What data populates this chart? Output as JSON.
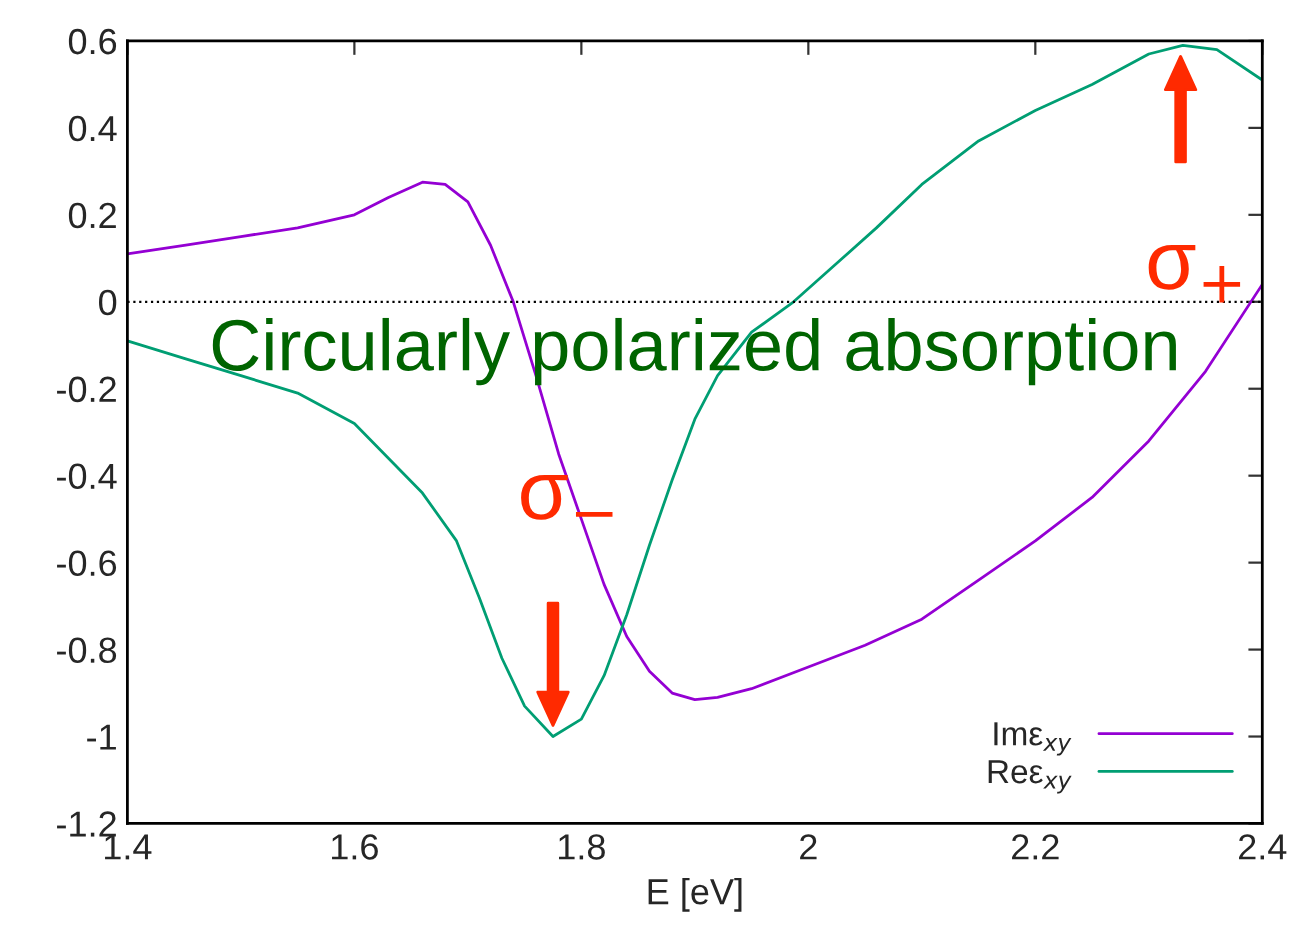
{
  "chart_data": {
    "type": "line",
    "xlabel": "E [eV]",
    "x": [
      1.4,
      1.45,
      1.5,
      1.55,
      1.6,
      1.63,
      1.66,
      1.68,
      1.7,
      1.72,
      1.74,
      1.76,
      1.78,
      1.8,
      1.82,
      1.84,
      1.86,
      1.88,
      1.9,
      1.92,
      1.95,
      2.0,
      2.05,
      2.1,
      2.15,
      2.2,
      2.25,
      2.3,
      2.35,
      2.4
    ],
    "series": [
      {
        "name": "Imε$_{xy}$",
        "color": "#9400d3",
        "values": [
          0.11,
          0.13,
          0.15,
          0.17,
          0.2,
          0.24,
          0.275,
          0.27,
          0.23,
          0.13,
          0.0,
          -0.17,
          -0.35,
          -0.5,
          -0.65,
          -0.77,
          -0.85,
          -0.9,
          -0.915,
          -0.91,
          -0.89,
          -0.84,
          -0.79,
          -0.73,
          -0.64,
          -0.55,
          -0.45,
          -0.32,
          -0.16,
          0.04
        ]
      },
      {
        "name": "Reε$_{xy}$",
        "color": "#009e73",
        "x": [
          1.4,
          1.45,
          1.5,
          1.55,
          1.6,
          1.63,
          1.66,
          1.69,
          1.71,
          1.73,
          1.75,
          1.775,
          1.8,
          1.82,
          1.84,
          1.86,
          1.88,
          1.9,
          1.92,
          1.95,
          1.987,
          2.03,
          2.06,
          2.1,
          2.15,
          2.2,
          2.25,
          2.3,
          2.33,
          2.36,
          2.4
        ],
        "values": [
          -0.09,
          -0.13,
          -0.17,
          -0.21,
          -0.28,
          -0.36,
          -0.44,
          -0.55,
          -0.68,
          -0.82,
          -0.93,
          -1.0,
          -0.96,
          -0.86,
          -0.72,
          -0.56,
          -0.41,
          -0.27,
          -0.17,
          -0.07,
          0.0,
          0.1,
          0.17,
          0.27,
          0.37,
          0.44,
          0.5,
          0.57,
          0.59,
          0.58,
          0.51
        ]
      }
    ],
    "xlim": [
      1.4,
      2.4
    ],
    "xticks": [
      1.4,
      1.6,
      1.8,
      2,
      2.2,
      2.4
    ],
    "ylim": [
      -1.2,
      0.6
    ],
    "yticks": [
      -1.2,
      -1,
      -0.8,
      -0.6,
      -0.4,
      -0.2,
      0,
      0.2,
      0.4,
      0.6
    ],
    "ref_lines": [
      {
        "axis": "y",
        "value": 0,
        "color": "#000000",
        "line_style": "dotted"
      }
    ],
    "annotations": [
      "Circularly polarized absorption",
      {
        "text": "σ$_{−}$",
        "x": 1.775,
        "y": -1.0
      },
      {
        "text": "σ$_{+}$",
        "x": 2.328,
        "y": 0.59
      }
    ],
    "legend": "bottom right",
    "grid": false,
    "marker": "none",
    "line_style": "solid"
  }
}
